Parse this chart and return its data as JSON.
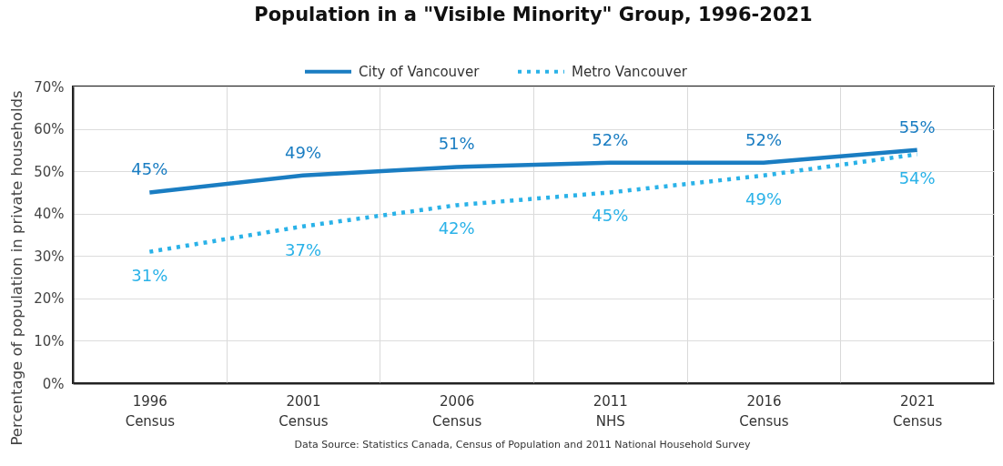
{
  "chart_data": {
    "type": "line",
    "title": "Population in a \"Visible Minority\" Group, 1996-2021",
    "ylabel": "Percentage of population in private households",
    "annotations": [
      "Data Source: Statistics Canada, Census of Population and 2011 National Household Survey"
    ],
    "categories": [
      "1996 Census",
      "2001 Census",
      "2006 Census",
      "2011 NHS",
      "2016 Census",
      "2021 Census"
    ],
    "series": [
      {
        "name": "City of Vancouver",
        "color": "#1a7dc2",
        "line_style": "solid",
        "values": [
          45,
          49,
          51,
          52,
          52,
          55
        ],
        "value_labels": [
          "45%",
          "49%",
          "51%",
          "52%",
          "52%",
          "55%"
        ]
      },
      {
        "name": "Metro Vancouver",
        "color": "#2ab2e8",
        "line_style": "dotted",
        "values": [
          31,
          37,
          42,
          45,
          49,
          54
        ],
        "value_labels": [
          "31%",
          "37%",
          "42%",
          "45%",
          "49%",
          "54%"
        ]
      }
    ],
    "ylim": [
      0,
      70
    ],
    "yticks": [
      {
        "value": 0,
        "label": "0%"
      },
      {
        "value": 10,
        "label": "10%"
      },
      {
        "value": 20,
        "label": "20%"
      },
      {
        "value": 30,
        "label": "30%"
      },
      {
        "value": 40,
        "label": "40%"
      },
      {
        "value": 50,
        "label": "50%"
      },
      {
        "value": 60,
        "label": "60%"
      },
      {
        "value": 70,
        "label": "70%"
      }
    ],
    "grid": true,
    "legend": "top",
    "marker": "none"
  }
}
